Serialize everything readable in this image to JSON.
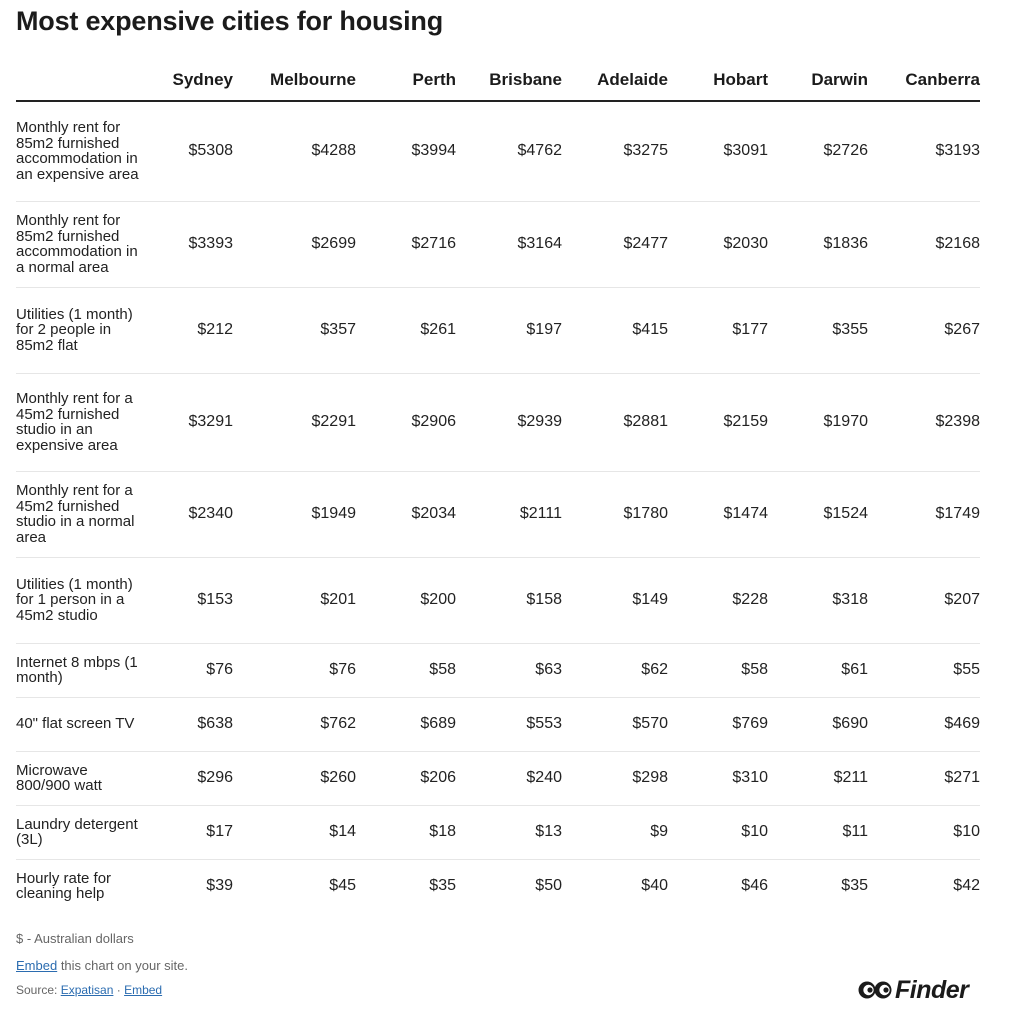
{
  "title": "Most expensive cities for housing",
  "chart_data": {
    "type": "table",
    "title": "Most expensive cities for housing",
    "columns": [
      "Sydney",
      "Melbourne",
      "Perth",
      "Brisbane",
      "Adelaide",
      "Hobart",
      "Darwin",
      "Canberra"
    ],
    "rows": [
      {
        "label": "Monthly rent for 85m2 furnished accommodation in an expensive area",
        "values": [
          "$5308",
          "$4288",
          "$3994",
          "$4762",
          "$3275",
          "$3091",
          "$2726",
          "$3193"
        ]
      },
      {
        "label": "Monthly rent for 85m2 furnished accommodation in a normal area",
        "values": [
          "$3393",
          "$2699",
          "$2716",
          "$3164",
          "$2477",
          "$2030",
          "$1836",
          "$2168"
        ]
      },
      {
        "label": "Utilities (1 month) for 2 people in 85m2 flat",
        "values": [
          "$212",
          "$357",
          "$261",
          "$197",
          "$415",
          "$177",
          "$355",
          "$267"
        ]
      },
      {
        "label": "Monthly rent for a 45m2 furnished studio in an expensive area",
        "values": [
          "$3291",
          "$2291",
          "$2906",
          "$2939",
          "$2881",
          "$2159",
          "$1970",
          "$2398"
        ]
      },
      {
        "label": "Monthly rent for a 45m2 furnished studio in a normal area",
        "values": [
          "$2340",
          "$1949",
          "$2034",
          "$2111",
          "$1780",
          "$1474",
          "$1524",
          "$1749"
        ]
      },
      {
        "label": "Utilities (1 month) for 1 person in a 45m2 studio",
        "values": [
          "$153",
          "$201",
          "$200",
          "$158",
          "$149",
          "$228",
          "$318",
          "$207"
        ]
      },
      {
        "label": "Internet 8 mbps (1 month)",
        "values": [
          "$76",
          "$76",
          "$58",
          "$63",
          "$62",
          "$58",
          "$61",
          "$55"
        ]
      },
      {
        "label": "40\" flat screen TV",
        "values": [
          "$638",
          "$762",
          "$689",
          "$553",
          "$570",
          "$769",
          "$690",
          "$469"
        ]
      },
      {
        "label": "Microwave 800/900 watt",
        "values": [
          "$296",
          "$260",
          "$206",
          "$240",
          "$298",
          "$310",
          "$211",
          "$271"
        ]
      },
      {
        "label": "Laundry detergent (3L)",
        "values": [
          "$17",
          "$14",
          "$18",
          "$13",
          "$9",
          "$10",
          "$11",
          "$10"
        ]
      },
      {
        "label": "Hourly rate for cleaning help",
        "values": [
          "$39",
          "$45",
          "$35",
          "$50",
          "$40",
          "$46",
          "$35",
          "$42"
        ]
      }
    ]
  },
  "footer": {
    "note": "$ - Australian dollars",
    "embed_link": "Embed",
    "embed_text": " this chart on your site.",
    "source_prefix": "Source: ",
    "source_link": "Expatisan",
    "source_separator": " · ",
    "source_embed_link": "Embed",
    "logo_text": "Finder"
  },
  "colors": {
    "text": "#222222",
    "link": "#2b6cb0",
    "muted": "#666666",
    "divider": "#e6e6e6"
  }
}
